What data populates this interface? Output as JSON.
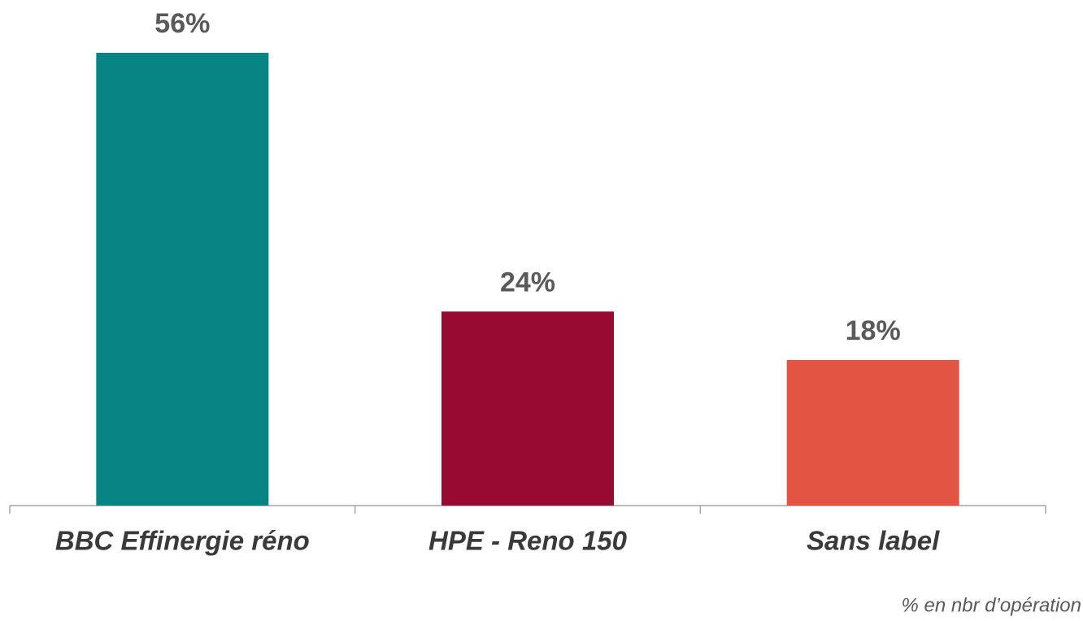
{
  "chart_data": {
    "type": "bar",
    "categories": [
      "BBC Effinergie réno",
      "HPE - Reno 150",
      "Sans label"
    ],
    "values": [
      56,
      24,
      18
    ],
    "value_labels": [
      "56%",
      "24%",
      "18%"
    ],
    "colors": [
      "#098485",
      "#970a31",
      "#e35443"
    ],
    "annotation": "% en nbr d’opération"
  }
}
